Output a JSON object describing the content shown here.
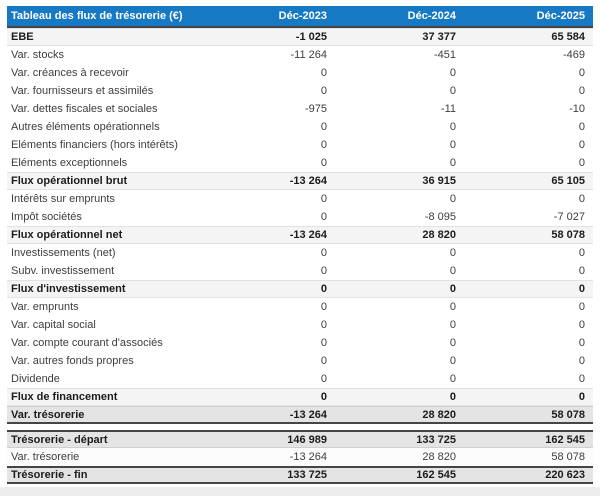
{
  "header": {
    "title": "Tableau des flux de trésorerie (€)",
    "columns": [
      "Déc-2023",
      "Déc-2024",
      "Déc-2025"
    ]
  },
  "rows": [
    {
      "label": "EBE",
      "values": [
        "-1 025",
        "37 377",
        "65 584"
      ],
      "style": "section"
    },
    {
      "label": "Var. stocks",
      "values": [
        "-11 264",
        "-451",
        "-469"
      ],
      "style": "normal"
    },
    {
      "label": "Var. créances à recevoir",
      "values": [
        "0",
        "0",
        "0"
      ],
      "style": "normal"
    },
    {
      "label": "Var. fournisseurs et assimilés",
      "values": [
        "0",
        "0",
        "0"
      ],
      "style": "normal"
    },
    {
      "label": "Var. dettes fiscales et sociales",
      "values": [
        "-975",
        "-11",
        "-10"
      ],
      "style": "normal"
    },
    {
      "label": "Autres éléments opérationnels",
      "values": [
        "0",
        "0",
        "0"
      ],
      "style": "normal"
    },
    {
      "label": "Eléments financiers (hors intérêts)",
      "values": [
        "0",
        "0",
        "0"
      ],
      "style": "normal"
    },
    {
      "label": "Eléments exceptionnels",
      "values": [
        "0",
        "0",
        "0"
      ],
      "style": "normal"
    },
    {
      "label": "Flux opérationnel brut",
      "values": [
        "-13 264",
        "36 915",
        "65 105"
      ],
      "style": "section"
    },
    {
      "label": "Intérêts sur emprunts",
      "values": [
        "0",
        "0",
        "0"
      ],
      "style": "normal"
    },
    {
      "label": "Impôt sociétés",
      "values": [
        "0",
        "-8 095",
        "-7 027"
      ],
      "style": "normal"
    },
    {
      "label": "Flux opérationnel net",
      "values": [
        "-13 264",
        "28 820",
        "58 078"
      ],
      "style": "section"
    },
    {
      "label": "Investissements (net)",
      "values": [
        "0",
        "0",
        "0"
      ],
      "style": "normal"
    },
    {
      "label": "Subv. investissement",
      "values": [
        "0",
        "0",
        "0"
      ],
      "style": "normal"
    },
    {
      "label": "Flux d'investissement",
      "values": [
        "0",
        "0",
        "0"
      ],
      "style": "section"
    },
    {
      "label": "Var. emprunts",
      "values": [
        "0",
        "0",
        "0"
      ],
      "style": "normal"
    },
    {
      "label": "Var. capital social",
      "values": [
        "0",
        "0",
        "0"
      ],
      "style": "normal"
    },
    {
      "label": "Var. compte courant d'associés",
      "values": [
        "0",
        "0",
        "0"
      ],
      "style": "normal"
    },
    {
      "label": "Var. autres fonds propres",
      "values": [
        "0",
        "0",
        "0"
      ],
      "style": "normal"
    },
    {
      "label": "Dividende",
      "values": [
        "0",
        "0",
        "0"
      ],
      "style": "normal"
    },
    {
      "label": "Flux de financement",
      "values": [
        "0",
        "0",
        "0"
      ],
      "style": "section"
    },
    {
      "label": "Var. trésorerie",
      "values": [
        "-13 264",
        "28 820",
        "58 078"
      ],
      "style": "total"
    },
    {
      "label": "Trésorerie - départ",
      "values": [
        "146 989",
        "133 725",
        "162 545"
      ],
      "style": "start",
      "gap_before": true
    },
    {
      "label": "Var. trésorerie",
      "values": [
        "-13 264",
        "28 820",
        "58 078"
      ],
      "style": "plain"
    },
    {
      "label": "Trésorerie - fin",
      "values": [
        "133 725",
        "162 545",
        "220 623"
      ],
      "style": "end"
    }
  ],
  "colors": {
    "header_bg": "#1779c4",
    "header_text": "#ffffff",
    "section_bg": "#f4f4f4",
    "total_bg": "#e4e4e4",
    "border_dark": "#454545"
  }
}
